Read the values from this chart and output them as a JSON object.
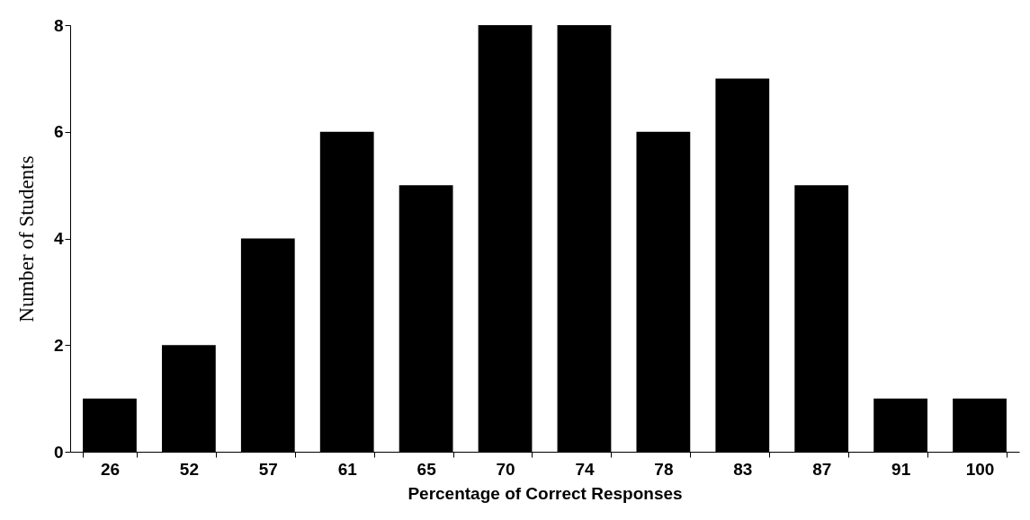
{
  "chart_data": {
    "type": "bar",
    "xlabel": "Percentage of Correct Responses",
    "ylabel": "Number of Students",
    "categories": [
      "26",
      "52",
      "57",
      "61",
      "65",
      "70",
      "74",
      "78",
      "83",
      "87",
      "91",
      "100"
    ],
    "values": [
      1,
      2,
      4,
      6,
      5,
      8,
      8,
      6,
      7,
      5,
      1,
      1
    ],
    "color": "#000000",
    "ylim": [
      0,
      8
    ],
    "yticks": [
      0,
      2,
      4,
      6,
      8
    ],
    "grid": false
  }
}
